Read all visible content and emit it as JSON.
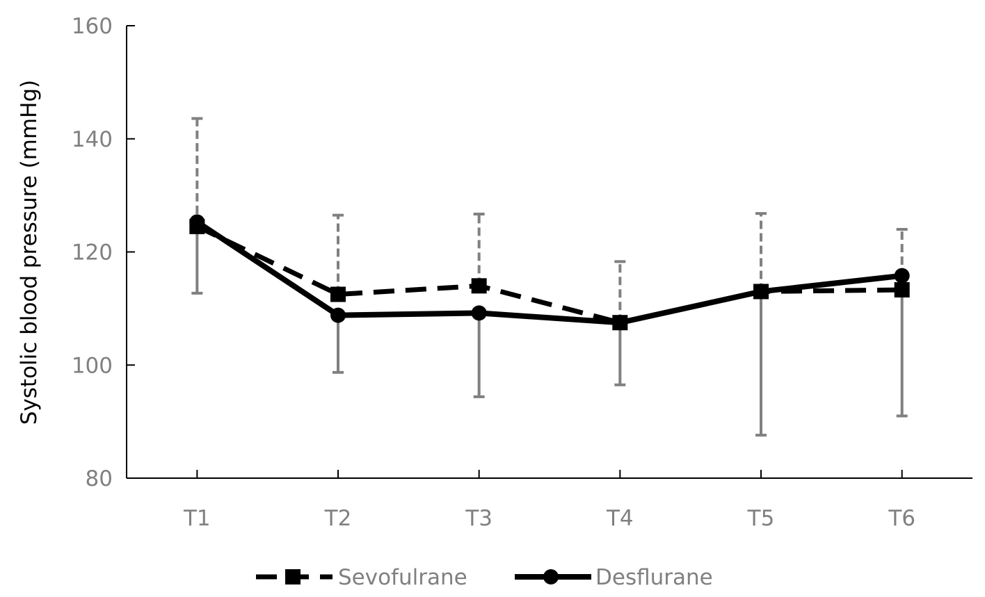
{
  "chart_data": {
    "type": "line",
    "title": "",
    "xlabel": "",
    "ylabel": "Systolic blood pressure (mmHg)",
    "ylim": [
      80,
      160
    ],
    "yticks": [
      80,
      100,
      120,
      140,
      160
    ],
    "categories": [
      "T1",
      "T2",
      "T3",
      "T4",
      "T5",
      "T6"
    ],
    "grid": false,
    "legend_position": "bottom-center",
    "series": [
      {
        "name": "Sevofulrane",
        "marker": "square",
        "line_style": "dashed",
        "color": "#000000",
        "error_color": "#808080",
        "values": [
          124.5,
          112.5,
          114.0,
          107.5,
          113.0,
          113.3
        ],
        "error_upper": [
          143.6,
          126.5,
          126.7,
          118.3,
          126.8,
          124.0
        ]
      },
      {
        "name": "Desflurane",
        "marker": "circle",
        "line_style": "solid",
        "color": "#000000",
        "error_color": "#808080",
        "values": [
          125.3,
          108.8,
          109.2,
          107.5,
          113.0,
          115.8
        ],
        "error_lower": [
          112.7,
          98.7,
          94.4,
          96.5,
          87.6,
          91.0
        ]
      }
    ]
  }
}
